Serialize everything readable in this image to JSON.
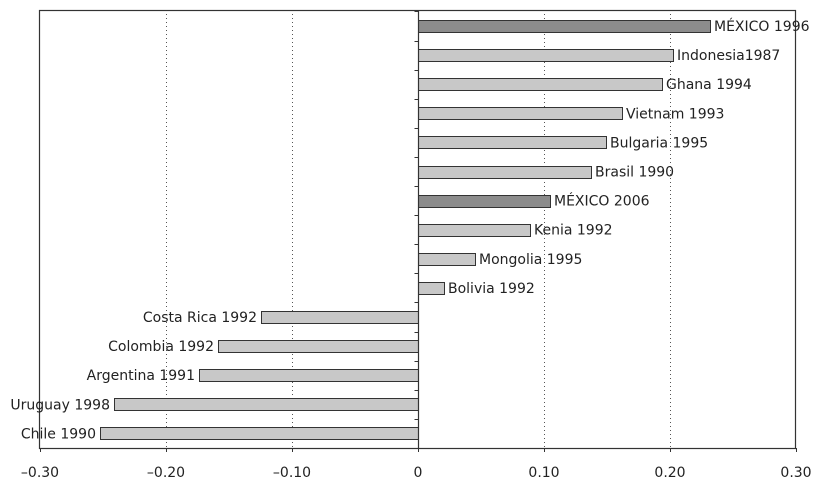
{
  "chart_data": {
    "type": "bar",
    "orientation": "horizontal",
    "categories": [
      "MÉXICO 1996",
      "Indonesia1987",
      "Ghana 1994",
      "Vietnam 1993",
      "Bulgaria 1995",
      "Brasil 1990",
      "MÉXICO 2006",
      "Kenia 1992",
      "Mongolia 1995",
      "Bolivia 1992",
      "Costa Rica 1992",
      "Colombia 1992",
      "Argentina 1991",
      "Uruguay 1998",
      "Chile 1990"
    ],
    "values": [
      0.232,
      0.202,
      0.194,
      0.162,
      0.149,
      0.137,
      0.105,
      0.089,
      0.045,
      0.021,
      -0.125,
      -0.159,
      -0.174,
      -0.241,
      -0.252
    ],
    "highlighted": [
      "MÉXICO 1996",
      "MÉXICO 2006"
    ],
    "xlim": [
      -0.3,
      0.3
    ],
    "xticks": [
      -0.3,
      -0.2,
      -0.1,
      0,
      0.1,
      0.2,
      0.3
    ],
    "xtick_labels": [
      "–0.30",
      "–0.20",
      "–0.10",
      "0",
      "0.10",
      "0.20",
      "0.30"
    ],
    "grid": "vertical-dotted",
    "colors": {
      "bar": "#c8c8c8",
      "bar_highlight": "#8c8c8c",
      "bar_edge": "#333333",
      "grid": "#555555",
      "axis": "#333333"
    }
  }
}
